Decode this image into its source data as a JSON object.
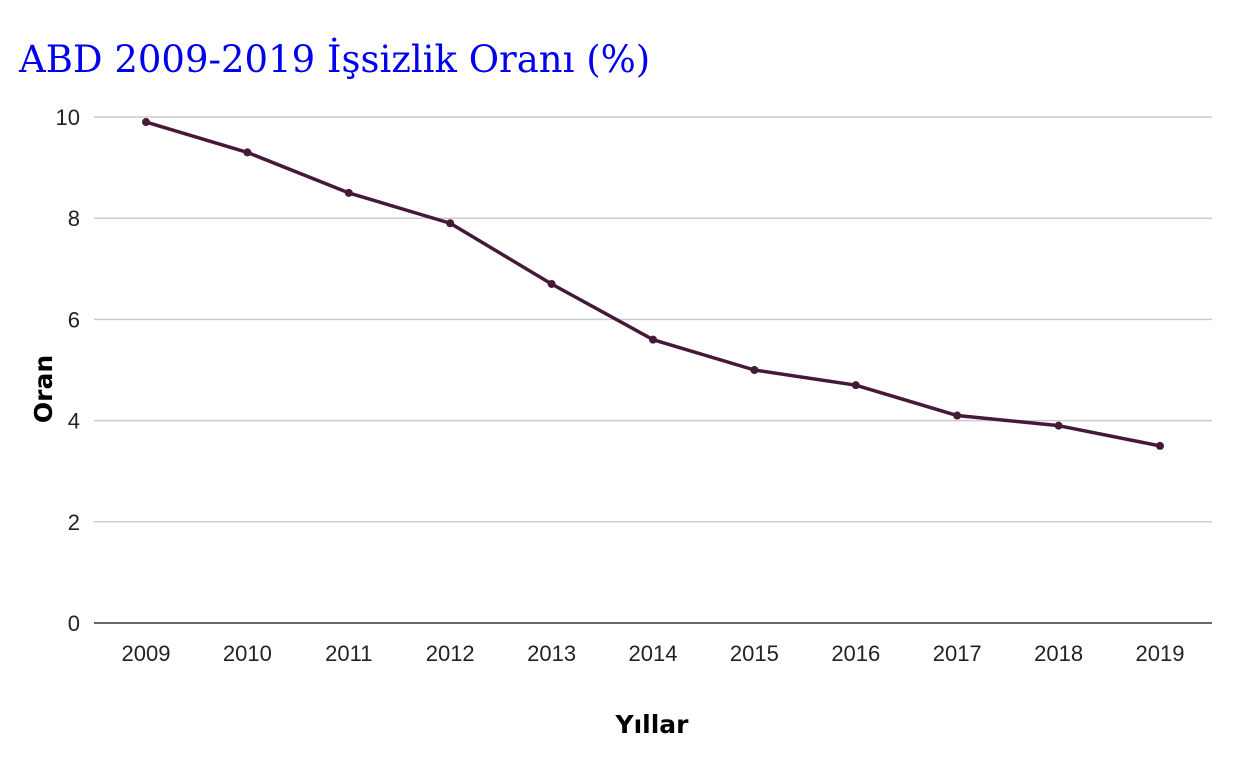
{
  "chart_data": {
    "type": "line",
    "title": "ABD 2009-2019 İşsizlik Oranı (%)",
    "xlabel": "Yıllar",
    "ylabel": "Oran",
    "categories": [
      "2009",
      "2010",
      "2011",
      "2012",
      "2013",
      "2014",
      "2015",
      "2016",
      "2017",
      "2018",
      "2019"
    ],
    "series": [
      {
        "values": [
          9.9,
          9.3,
          8.5,
          7.9,
          6.7,
          5.6,
          5.0,
          4.7,
          4.1,
          3.9,
          3.5
        ]
      }
    ],
    "ylim": [
      0,
      10
    ],
    "yticks": [
      "0",
      "2",
      "4",
      "6",
      "8",
      "10"
    ],
    "grid": true,
    "legend": "none",
    "colors": {
      "title": "#0000ee",
      "line": "#451a38",
      "grid": "#cccccc",
      "axis": "#333333"
    }
  }
}
